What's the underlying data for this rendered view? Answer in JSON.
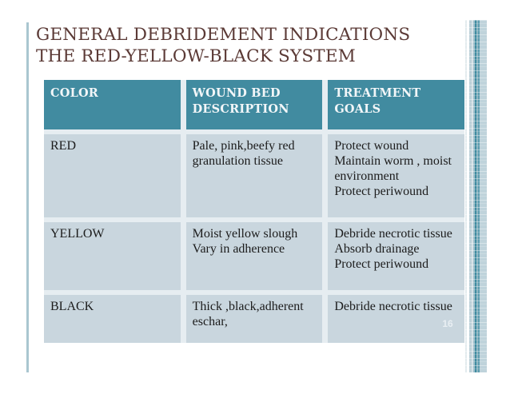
{
  "slide": {
    "title_line1": "GENERAL DEBRIDEMENT INDICATIONS",
    "title_line2": "THE RED-YELLOW-BLACK SYSTEM",
    "page_number": "16"
  },
  "table": {
    "headers": [
      "COLOR",
      [
        "WOUND BED",
        "DESCRIPTION"
      ],
      "TREATMENT GOALS"
    ],
    "rows": [
      {
        "color": "RED",
        "wound_bed": [
          "Pale, pink,beefy red",
          "granulation tissue"
        ],
        "goals": [
          "Protect wound",
          "Maintain worm , moist",
          "environment",
          "Protect periwound"
        ]
      },
      {
        "color": "YELLOW",
        "wound_bed": [
          "Moist yellow slough",
          "Vary in adherence"
        ],
        "goals": [
          "Debride necrotic tissue",
          "Absorb drainage",
          "Protect periwound"
        ]
      },
      {
        "color": "BLACK",
        "wound_bed": [
          "Thick ,black,adherent",
          "eschar,"
        ],
        "goals": [
          "Debride necrotic tissue"
        ]
      }
    ]
  },
  "colors": {
    "header-teal": "#418ba0",
    "row-bg": "#c9d6de",
    "gap-color": "#e6edf1",
    "title-color": "#5b3a36",
    "text-color": "#1c1c1c",
    "accent-line": "#aac6d0",
    "page-bg": "#ffffff",
    "page-number-color": "#e9eff3",
    "header-text": "#f2f6f8"
  }
}
